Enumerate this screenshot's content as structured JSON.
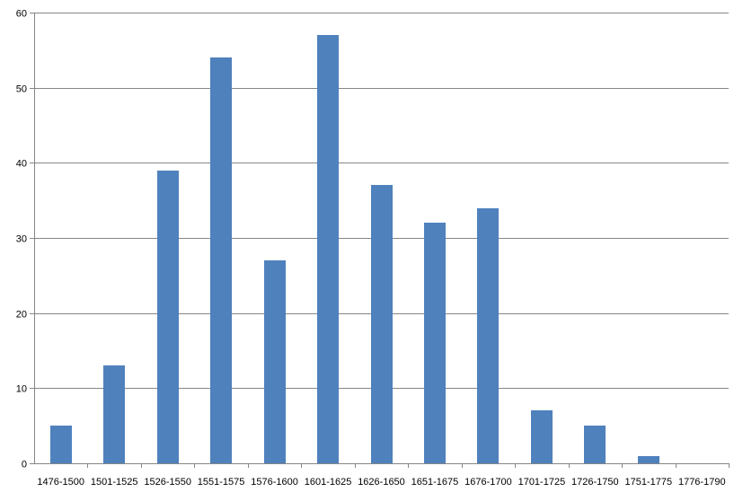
{
  "chart_data": {
    "type": "bar",
    "title": "",
    "xlabel": "",
    "ylabel": "",
    "categories": [
      "1476-1500",
      "1501-1525",
      "1526-1550",
      "1551-1575",
      "1576-1600",
      "1601-1625",
      "1626-1650",
      "1651-1675",
      "1676-1700",
      "1701-1725",
      "1726-1750",
      "1751-1775",
      "1776-1790"
    ],
    "values": [
      5,
      13,
      39,
      54,
      27,
      57,
      37,
      32,
      34,
      7,
      5,
      1,
      0
    ],
    "ylim": [
      0,
      60
    ],
    "yticks": [
      0,
      10,
      20,
      30,
      40,
      50,
      60
    ],
    "grid": true,
    "legend": "none",
    "bar_color": "#4f81bd",
    "grid_color": "#868686"
  }
}
